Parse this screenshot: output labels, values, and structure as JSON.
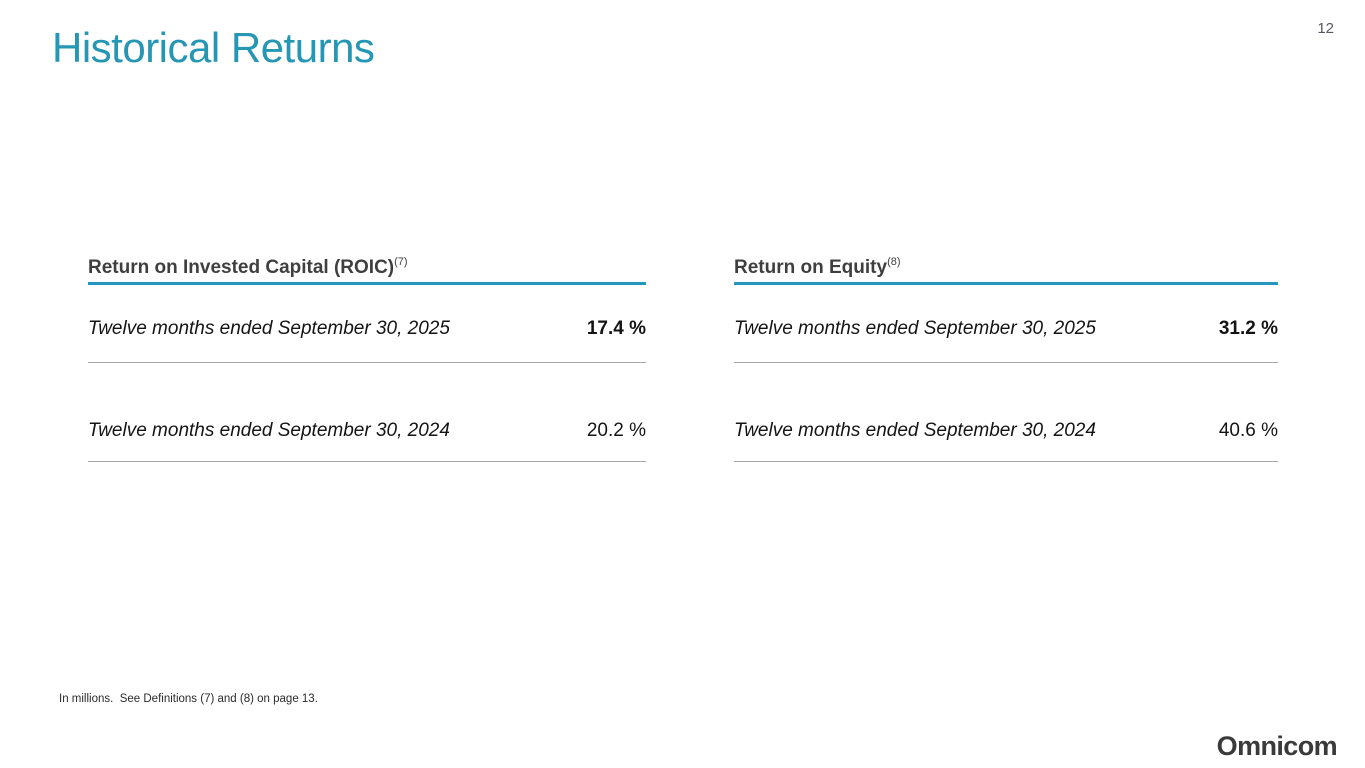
{
  "page_number": "12",
  "title": "Historical Returns",
  "colors": {
    "accent_rule": "#2596be",
    "title_teal": "#2596b4"
  },
  "tables": [
    {
      "heading": "Return on Invested Capital (ROIC)",
      "heading_note_ref": "(7)",
      "rows": [
        {
          "label": "Twelve months ended September 30, 2025",
          "value": "17.4 %"
        },
        {
          "label": "Twelve months ended September 30, 2024",
          "value": "20.2 %"
        }
      ]
    },
    {
      "heading": "Return on Equity",
      "heading_note_ref": "(8)",
      "rows": [
        {
          "label": "Twelve months ended September 30, 2025",
          "value": "31.2 %"
        },
        {
          "label": "Twelve months ended September 30, 2024",
          "value": "40.6 %"
        }
      ]
    }
  ],
  "footnote": "In millions.  See Definitions (7) and (8) on page 13.",
  "logo_text": "Omnicom"
}
